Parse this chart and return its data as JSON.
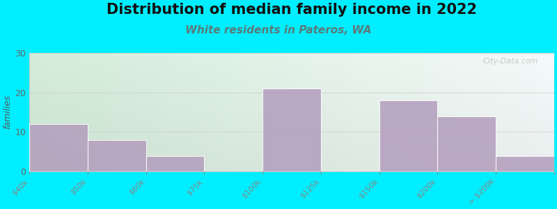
{
  "title": "Distribution of median family income in 2022",
  "subtitle": "White residents in Pateros, WA",
  "ylabel": "families",
  "tick_labels": [
    "$40k",
    "$50k",
    "$60k",
    "$75k",
    "$100k",
    "$125k",
    "$150k",
    "$200k",
    "> $200k"
  ],
  "values": [
    12,
    8,
    4,
    0,
    21,
    0,
    18,
    14,
    4
  ],
  "bar_color": "#b39dbd",
  "bar_alpha": 0.85,
  "ylim": [
    0,
    30
  ],
  "yticks": [
    0,
    10,
    20,
    30
  ],
  "background_outer": "#00eeff",
  "grad_color_topleft": "#d4edd9",
  "grad_color_topright": "#f0f8f8",
  "grad_color_bottom": "#e8f4ec",
  "grid_color": "#d0d0d0",
  "title_fontsize": 15,
  "subtitle_fontsize": 11,
  "subtitle_color": "#5a7a7a",
  "ylabel_fontsize": 9,
  "watermark": "City-Data.com",
  "tick_fontsize": 8
}
